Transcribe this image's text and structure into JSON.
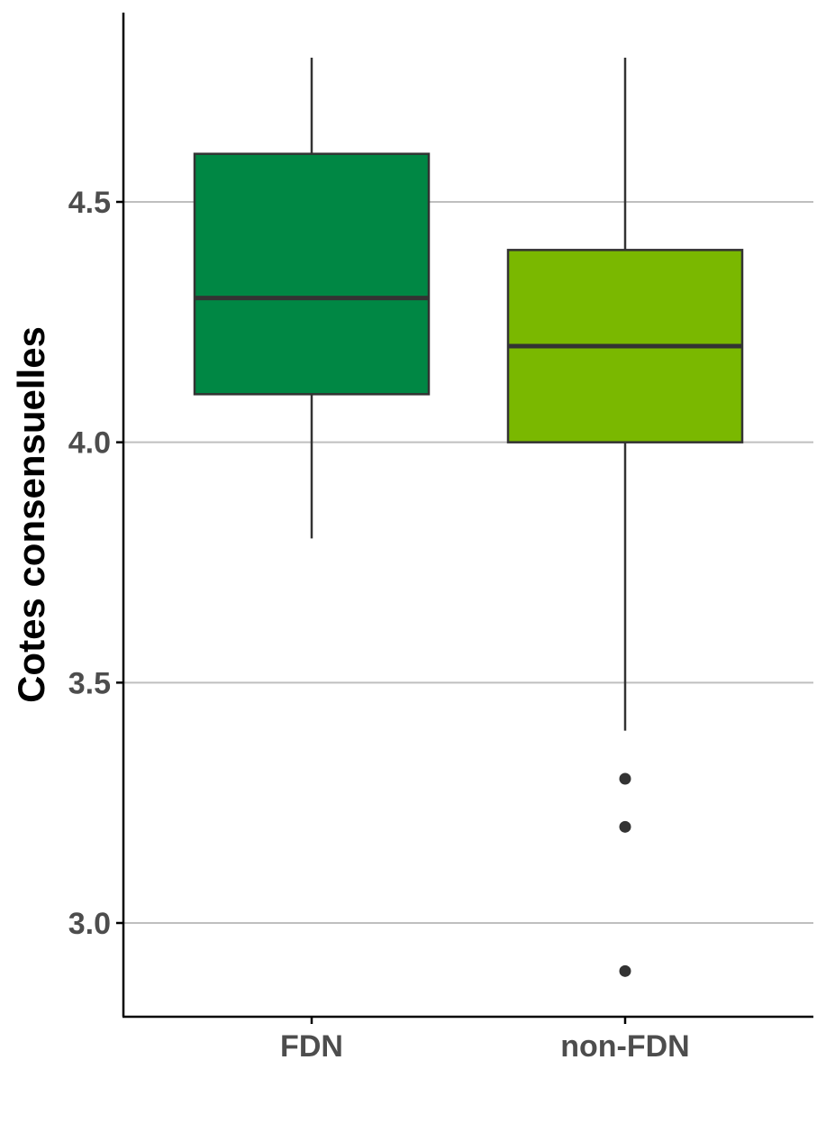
{
  "chart_data": {
    "type": "boxplot",
    "title": "",
    "xlabel": "",
    "ylabel": "Cotes consensuelles",
    "ylim": [
      2.8,
      4.9
    ],
    "yticks": [
      3.0,
      3.5,
      4.0,
      4.5
    ],
    "ytick_labels": [
      "3.0",
      "3.5",
      "4.0",
      "4.5"
    ],
    "grid": "horizontal-major",
    "legend": "none",
    "categories": [
      "FDN",
      "non-FDN"
    ],
    "boxes": [
      {
        "category": "FDN",
        "whisker_low": 3.8,
        "q1": 4.1,
        "median": 4.3,
        "q3": 4.6,
        "whisker_high": 4.8,
        "outliers": [],
        "color": "#008744"
      },
      {
        "category": "non-FDN",
        "whisker_low": 3.4,
        "q1": 4.0,
        "median": 4.2,
        "q3": 4.4,
        "whisker_high": 4.8,
        "outliers": [
          3.3,
          3.2,
          2.9
        ],
        "color": "#7ab800"
      }
    ]
  }
}
